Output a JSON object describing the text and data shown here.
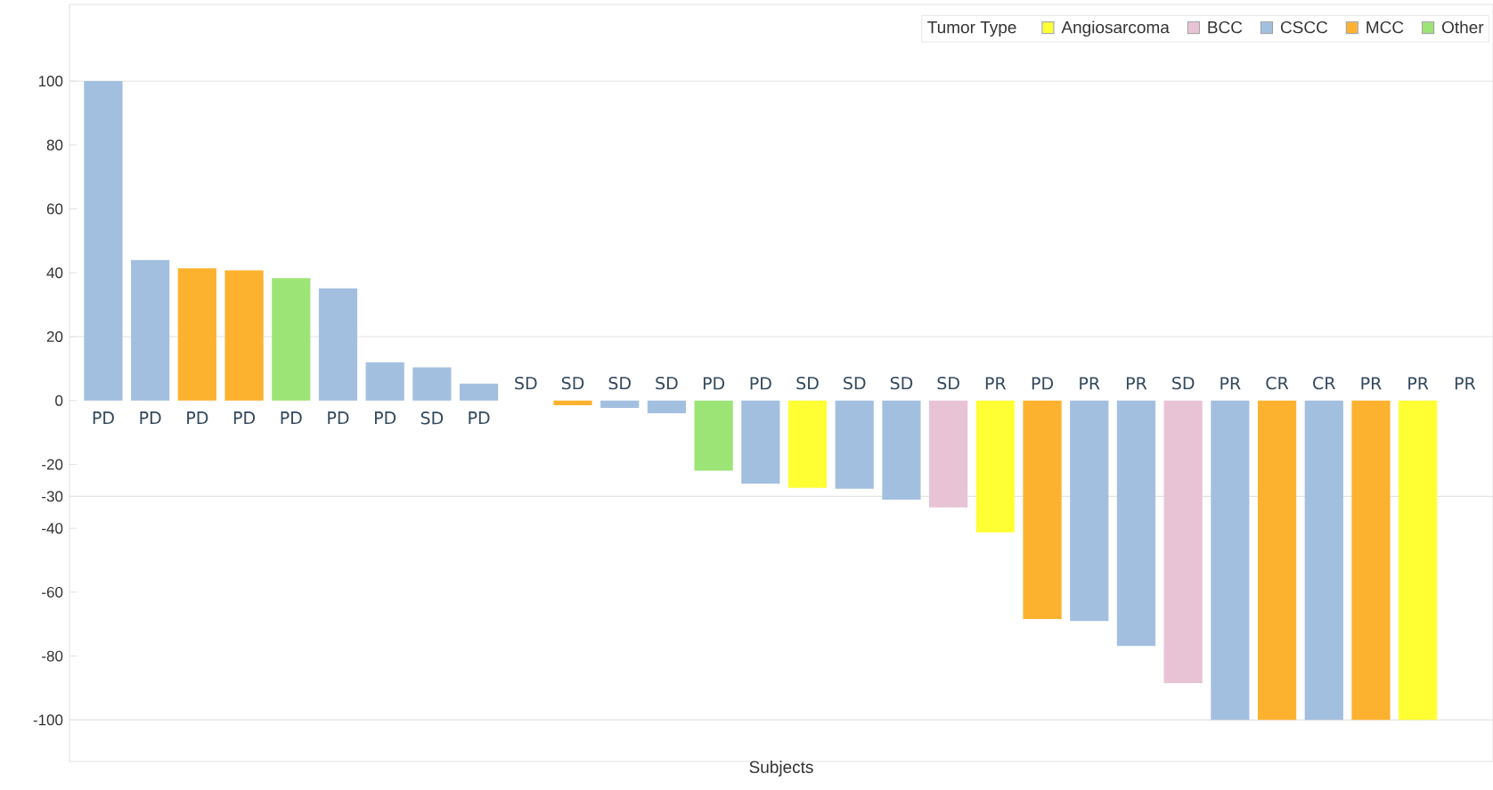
{
  "chart_data": {
    "type": "bar",
    "xlabel": "Subjects",
    "legend_title": "Tumor Type",
    "legend": "top right",
    "categories": [
      null,
      null,
      null,
      null,
      null,
      null,
      null,
      null,
      null,
      null,
      null,
      null,
      null,
      null,
      null,
      null,
      null,
      null,
      null,
      null,
      null,
      null,
      null,
      null,
      null,
      null,
      null,
      null,
      null,
      null
    ],
    "series": [
      {
        "name": "Angiosarcoma",
        "color": "#ffff33",
        "values": [
          null,
          null,
          null,
          null,
          null,
          null,
          null,
          null,
          null,
          null,
          null,
          null,
          null,
          null,
          null,
          -27.3,
          null,
          null,
          null,
          -41.3,
          null,
          null,
          null,
          null,
          null,
          null,
          null,
          null,
          -100,
          null
        ],
        "value_labels": [
          null,
          null,
          null,
          null,
          null,
          null,
          null,
          null,
          null,
          null,
          null,
          null,
          null,
          null,
          null,
          "SD",
          null,
          null,
          null,
          "PR",
          null,
          null,
          null,
          null,
          null,
          null,
          null,
          null,
          "PR",
          null
        ]
      },
      {
        "name": "BCC",
        "color": "#e8c3d6",
        "values": [
          null,
          null,
          null,
          null,
          null,
          null,
          null,
          null,
          null,
          null,
          null,
          null,
          null,
          null,
          null,
          null,
          null,
          null,
          -33.5,
          null,
          null,
          null,
          null,
          -88.5,
          null,
          null,
          null,
          null,
          null,
          null
        ],
        "value_labels": [
          null,
          null,
          null,
          null,
          null,
          null,
          null,
          null,
          null,
          null,
          null,
          null,
          null,
          null,
          null,
          null,
          null,
          null,
          "SD",
          null,
          null,
          null,
          null,
          "SD",
          null,
          null,
          null,
          null,
          null,
          null
        ]
      },
      {
        "name": "CSCC",
        "color": "#a3bfe0",
        "values": [
          100,
          44,
          null,
          null,
          null,
          35.1,
          12,
          10.4,
          5.3,
          0,
          null,
          -2.3,
          -4,
          null,
          -26,
          null,
          -27.6,
          -31,
          null,
          null,
          null,
          -69,
          -76.8,
          null,
          -100,
          null,
          -100,
          null,
          null,
          null
        ],
        "value_labels": [
          "PD",
          "PD",
          null,
          null,
          null,
          "PD",
          "PD",
          "SD",
          "PD",
          "SD",
          null,
          "SD",
          "SD",
          null,
          "PD",
          null,
          "SD",
          "SD",
          null,
          null,
          null,
          "PR",
          "PR",
          null,
          "PR",
          null,
          "CR",
          null,
          null,
          null
        ]
      },
      {
        "name": "MCC",
        "color": "#fdb22f",
        "values": [
          null,
          null,
          41.4,
          40.8,
          null,
          null,
          null,
          null,
          null,
          null,
          -1.5,
          null,
          null,
          null,
          null,
          null,
          null,
          null,
          null,
          null,
          -68.4,
          null,
          null,
          null,
          null,
          -100,
          null,
          -100,
          null,
          null
        ],
        "value_labels": [
          null,
          null,
          "PD",
          "PD",
          null,
          null,
          null,
          null,
          null,
          null,
          "SD",
          null,
          null,
          null,
          null,
          null,
          null,
          null,
          null,
          null,
          "PD",
          null,
          null,
          null,
          null,
          "CR",
          null,
          "PR",
          null,
          "PR"
        ]
      },
      {
        "name": "Other",
        "color": "#9de477",
        "values": [
          null,
          null,
          null,
          null,
          38.3,
          null,
          null,
          null,
          null,
          null,
          null,
          null,
          null,
          -22,
          null,
          null,
          null,
          null,
          null,
          null,
          null,
          null,
          null,
          null,
          null,
          null,
          null,
          null,
          null,
          null
        ],
        "value_labels": [
          null,
          null,
          null,
          null,
          "PD",
          null,
          null,
          null,
          null,
          null,
          null,
          null,
          null,
          "PD",
          null,
          null,
          null,
          null,
          null,
          null,
          null,
          null,
          null,
          null,
          null,
          null,
          null,
          null,
          null,
          null
        ]
      }
    ],
    "ylim": [
      -113,
      124
    ],
    "yticks": [
      -100,
      -80,
      -60,
      -40,
      -30,
      -20,
      0,
      20,
      40,
      60,
      80,
      100
    ],
    "ref_lines": [
      {
        "axis": "y",
        "value": 100,
        "color": "#e4e4e4"
      },
      {
        "axis": "y",
        "value": 20,
        "color": "#e4e4e4"
      },
      {
        "axis": "y",
        "value": -30,
        "color": "#e4e4e4"
      },
      {
        "axis": "y",
        "value": -100,
        "color": "#e4e4e4"
      }
    ]
  }
}
